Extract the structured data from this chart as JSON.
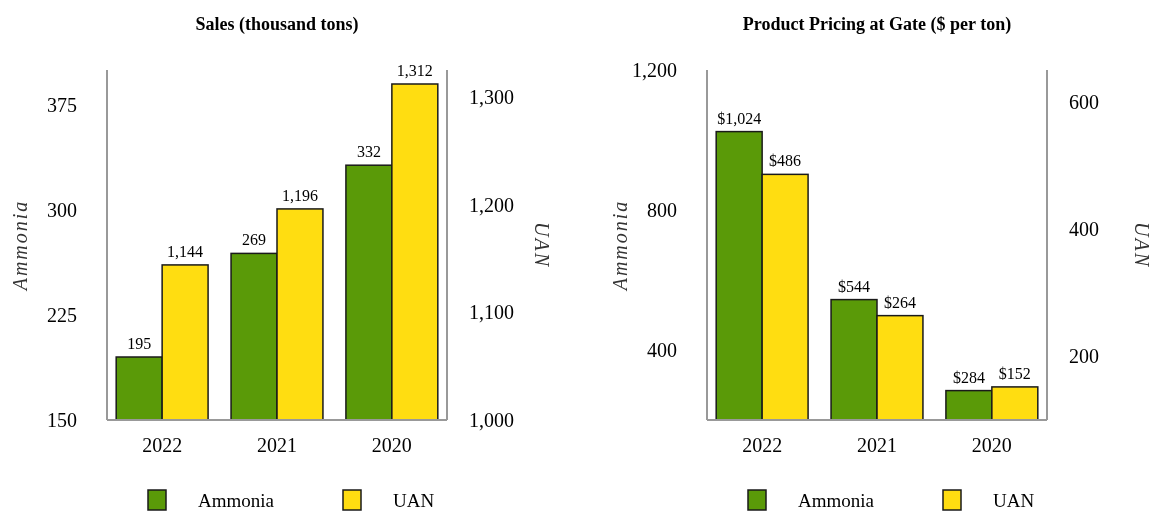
{
  "chart_data": [
    {
      "type": "bar",
      "title": "Sales (thousand tons)",
      "ylabel": "Ammonia",
      "y2label": "UAN",
      "categories": [
        "2022",
        "2021",
        "2020"
      ],
      "series": [
        {
          "name": "Ammonia",
          "color": "#5a9a08",
          "values": [
            195,
            269,
            332
          ],
          "value_labels": [
            "195",
            "269",
            "332"
          ]
        },
        {
          "name": "UAN",
          "color": "#ffdd11",
          "axis": "y2",
          "values": [
            1144,
            1196,
            1312
          ],
          "value_labels": [
            "1,144",
            "1,196",
            "1,312"
          ]
        }
      ],
      "ylim": [
        150,
        400
      ],
      "yticks": [
        150,
        225,
        300,
        375
      ],
      "y2lim": [
        1000,
        1325
      ],
      "y2ticks": [
        {
          "value": 1000,
          "label": "1,000"
        },
        {
          "value": 1100,
          "label": "1,100"
        },
        {
          "value": 1200,
          "label": "1,200"
        },
        {
          "value": 1300,
          "label": "1,300"
        }
      ],
      "legend": "bottom",
      "grid": false
    },
    {
      "type": "bar",
      "title": "Product Pricing at Gate ($ per ton)",
      "ylabel": "Ammonia",
      "y2label": "UAN",
      "categories": [
        "2022",
        "2021",
        "2020"
      ],
      "series": [
        {
          "name": "Ammonia",
          "color": "#5a9a08",
          "values": [
            1024,
            544,
            284
          ],
          "value_labels": [
            "$1,024",
            "$544",
            "$284"
          ]
        },
        {
          "name": "UAN",
          "color": "#ffdd11",
          "axis": "y2",
          "values": [
            486,
            264,
            152
          ],
          "value_labels": [
            "$486",
            "$264",
            "$152"
          ]
        }
      ],
      "ylim": [
        200,
        1200
      ],
      "yticks": [
        400,
        800,
        {
          "value": 1200,
          "label": "1,200"
        }
      ],
      "y2lim": [
        100,
        650
      ],
      "y2ticks": [
        200,
        400,
        600
      ],
      "legend": "bottom",
      "grid": false
    }
  ]
}
